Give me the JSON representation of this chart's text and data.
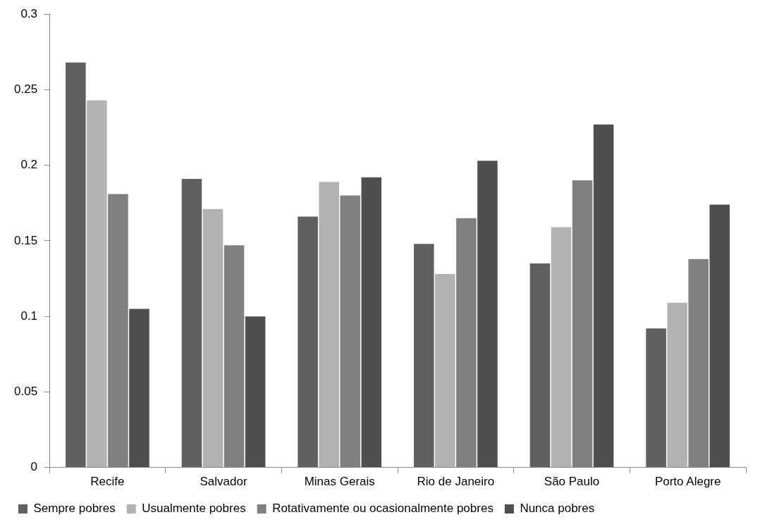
{
  "chart_data": {
    "type": "bar",
    "categories": [
      "Recife",
      "Salvador",
      "Minas Gerais",
      "Rio de Janeiro",
      "São Paulo",
      "Porto Alegre"
    ],
    "series": [
      {
        "name": "Sempre pobres",
        "color": "#606060",
        "values": [
          0.268,
          0.191,
          0.166,
          0.148,
          0.135,
          0.092
        ]
      },
      {
        "name": "Usualmente pobres",
        "color": "#b2b2b2",
        "values": [
          0.243,
          0.171,
          0.189,
          0.128,
          0.159,
          0.109
        ]
      },
      {
        "name": "Rotativamente ou ocasionalmente pobres",
        "color": "#808080",
        "values": [
          0.181,
          0.147,
          0.18,
          0.165,
          0.19,
          0.138
        ]
      },
      {
        "name": "Nunca pobres",
        "color": "#4f4f4f",
        "values": [
          0.105,
          0.1,
          0.192,
          0.203,
          0.227,
          0.174
        ]
      }
    ],
    "ylim": [
      0,
      0.3
    ],
    "yticks": [
      0,
      0.05,
      0.1,
      0.15,
      0.2,
      0.25,
      0.3
    ],
    "grid": false,
    "legend": "bottom"
  }
}
